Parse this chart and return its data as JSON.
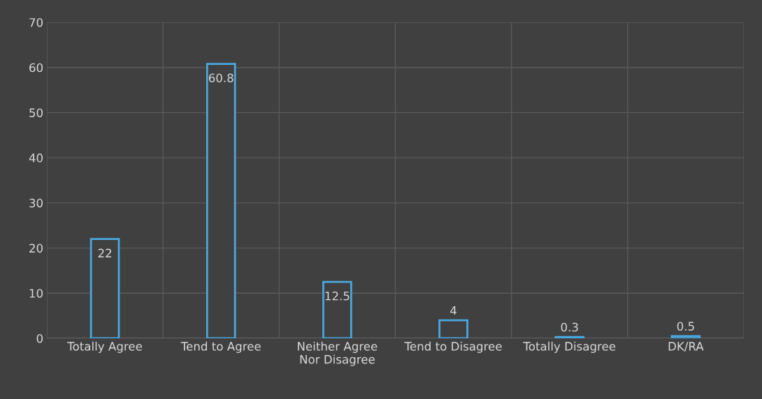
{
  "chart_data": {
    "type": "bar",
    "categories": [
      "Totally Agree",
      "Tend to Agree",
      "Neither Agree\nNor Disagree",
      "Tend to Disagree",
      "Totally Disagree",
      "DK/RA"
    ],
    "values": [
      22,
      60.8,
      12.5,
      4,
      0.3,
      0.5
    ],
    "color": "#4aa8e0",
    "ylim": [
      0,
      70
    ],
    "yticks": [
      0,
      10,
      20,
      30,
      40,
      50,
      60,
      70
    ],
    "grid": true,
    "data_labels": true
  }
}
